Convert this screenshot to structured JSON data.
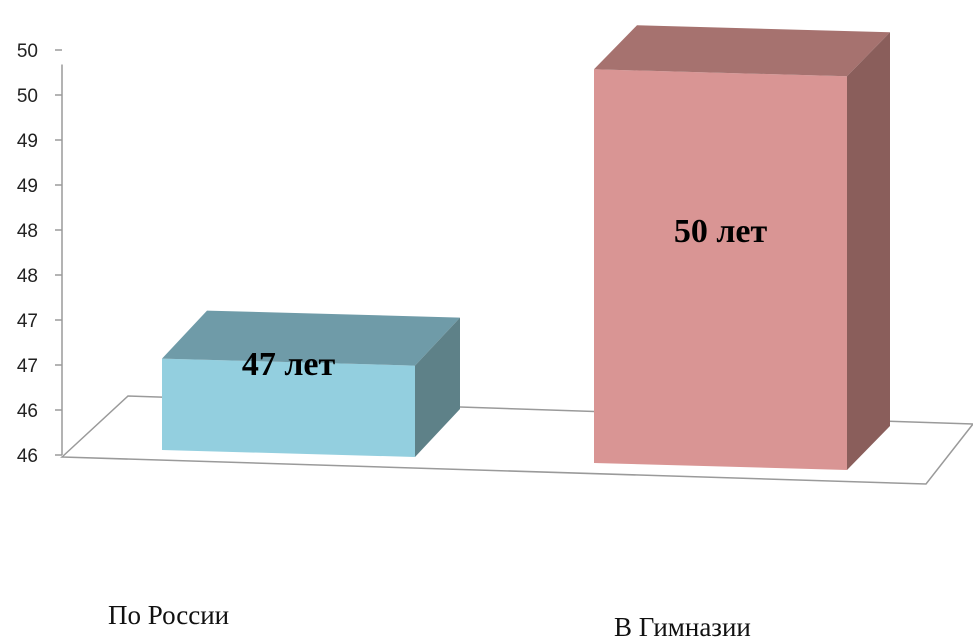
{
  "chart_data": {
    "type": "bar",
    "categories": [
      "По России",
      "В Гимназии"
    ],
    "values": [
      47,
      50
    ],
    "data_labels": [
      "47 лет",
      "50 лет"
    ],
    "y_tick_labels": [
      "46",
      "46",
      "47",
      "47",
      "48",
      "48",
      "49",
      "49",
      "50",
      "50"
    ],
    "ylim": [
      46,
      50.2
    ],
    "grid": false,
    "three_d": true,
    "colors": {
      "series": [
        "#93cfdf",
        "#d99594"
      ],
      "top": [
        "#6f9ba8",
        "#a6726f"
      ],
      "side": [
        "#5e8188",
        "#8a5e5b"
      ]
    }
  }
}
